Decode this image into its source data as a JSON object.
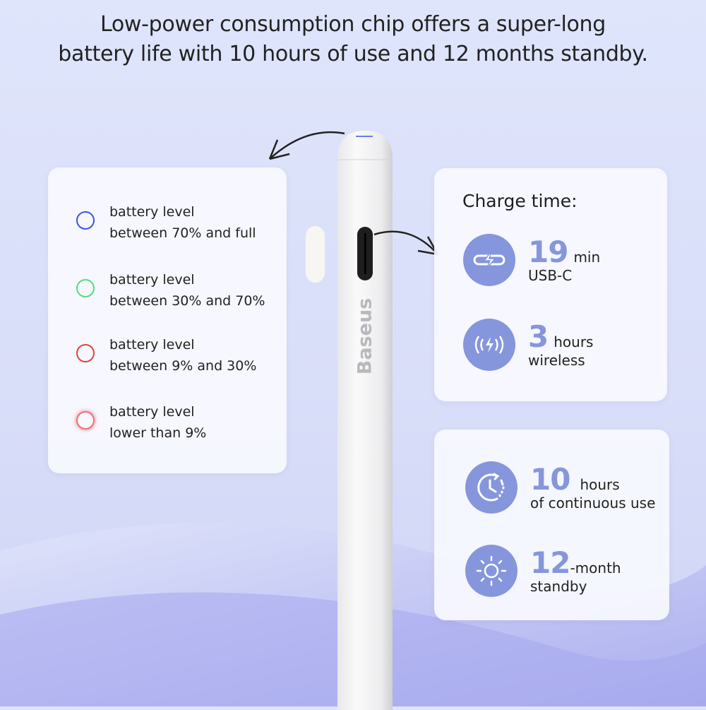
{
  "headline": {
    "line1": "Low-power consumption chip offers a super-long",
    "line2": "battery life with 10 hours of use and 12 months standby."
  },
  "brand": "Baseus",
  "battery_legend": [
    {
      "line1": "battery level",
      "line2": "between 70% and full",
      "color": "#3a55e0"
    },
    {
      "line1": "battery level",
      "line2": "between 30% and 70%",
      "color": "#4fe07a"
    },
    {
      "line1": "battery level",
      "line2": "between 9% and 30%",
      "color": "#e8413a"
    },
    {
      "line1": "battery level",
      "line2": "lower than 9%",
      "color": "#f07070"
    }
  ],
  "charge": {
    "heading": "Charge time:",
    "items": [
      {
        "value": "19",
        "unit": "min",
        "label": "USB-C",
        "icon": "usb-c-lightning-icon"
      },
      {
        "value": "3",
        "unit": "hours",
        "label": "wireless",
        "icon": "wireless-charging-icon"
      }
    ]
  },
  "usage": {
    "items": [
      {
        "value": "10",
        "unit": "hours",
        "label": "of continuous use",
        "icon": "clock-icon"
      },
      {
        "value": "12",
        "unit": "-month",
        "label": "standby",
        "icon": "sun-icon"
      }
    ]
  },
  "colors": {
    "accent": "#8596dc",
    "background": "#dfe5fb"
  }
}
